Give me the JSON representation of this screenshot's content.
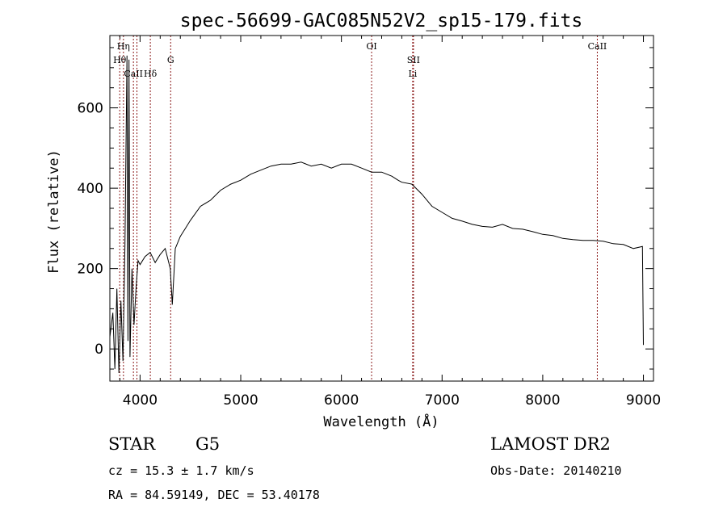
{
  "chart_data": {
    "type": "line",
    "title": "spec-56699-GAC085N52V2_sp15-179.fits",
    "xlabel": "Wavelength (Å)",
    "ylabel": "Flux (relative)",
    "xlim": [
      3700,
      9100
    ],
    "ylim": [
      -80,
      780
    ],
    "x_ticks": [
      4000,
      5000,
      6000,
      7000,
      8000,
      9000
    ],
    "y_ticks": [
      0,
      200,
      400,
      600
    ],
    "grid": false,
    "colors": {
      "spectrum": "#000000",
      "lines": "#8b1a1a"
    },
    "series": [
      {
        "x": [
          3700,
          3730,
          3750,
          3770,
          3790,
          3810,
          3830,
          3850,
          3870,
          3880,
          3890,
          3900,
          3920,
          3940,
          3960,
          3980,
          4000,
          4050,
          4100,
          4150,
          4200,
          4250,
          4300,
          4320,
          4350,
          4400,
          4450,
          4500,
          4600,
          4700,
          4800,
          4900,
          5000,
          5100,
          5200,
          5300,
          5400,
          5500,
          5600,
          5700,
          5800,
          5900,
          6000,
          6100,
          6200,
          6300,
          6400,
          6500,
          6563,
          6600,
          6700,
          6800,
          6900,
          7000,
          7100,
          7200,
          7300,
          7400,
          7500,
          7600,
          7700,
          7800,
          7900,
          8000,
          8100,
          8200,
          8300,
          8400,
          8500,
          8600,
          8700,
          8800,
          8900,
          8990,
          9000
        ],
        "y": [
          30,
          90,
          -50,
          150,
          -60,
          120,
          -30,
          260,
          730,
          20,
          720,
          -20,
          200,
          60,
          150,
          220,
          210,
          230,
          240,
          215,
          235,
          250,
          200,
          110,
          250,
          280,
          300,
          320,
          355,
          370,
          395,
          410,
          420,
          435,
          445,
          455,
          460,
          460,
          465,
          455,
          460,
          450,
          460,
          460,
          450,
          440,
          440,
          430,
          420,
          415,
          410,
          385,
          355,
          340,
          325,
          318,
          310,
          305,
          303,
          310,
          300,
          298,
          292,
          285,
          282,
          275,
          272,
          270,
          270,
          268,
          262,
          260,
          250,
          255,
          10
        ]
      }
    ],
    "lines": [
      {
        "label": "CaII",
        "wavelength": 3934,
        "row": 3
      },
      {
        "label": "CaII",
        "wavelength": 3969,
        "row": 3
      },
      {
        "label": "Hθ",
        "wavelength": 3798,
        "row": 2
      },
      {
        "label": "Hη",
        "wavelength": 3835,
        "row": 1
      },
      {
        "label": "Hδ",
        "wavelength": 4102,
        "row": 3
      },
      {
        "label": "G",
        "wavelength": 4304,
        "row": 2
      },
      {
        "label": "OI",
        "wavelength": 6300,
        "row": 1
      },
      {
        "label": "SII",
        "wavelength": 6716,
        "row": 2
      },
      {
        "label": "Li",
        "wavelength": 6708,
        "row": 3
      },
      {
        "label": "CaII",
        "wavelength": 8542,
        "row": 1
      }
    ]
  },
  "info": {
    "object_class": "STAR",
    "subclass": "G5",
    "redshift": "cz = 15.3 ± 1.7 km/s",
    "coords": "RA =  84.59149, DEC =  53.40178",
    "survey": "LAMOST DR2",
    "obs_date": "Obs-Date: 20140210"
  }
}
